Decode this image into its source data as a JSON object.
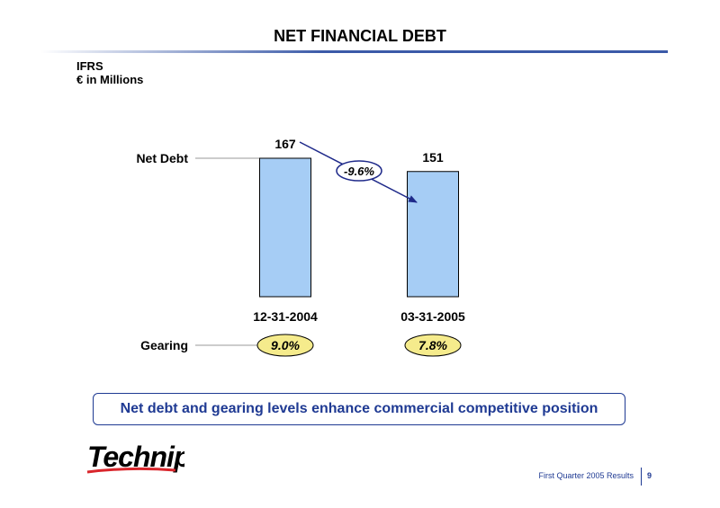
{
  "page": {
    "title": "NET FINANCIAL DEBT",
    "units_line1": "IFRS",
    "units_line2": "€ in Millions",
    "conclusion": "Net debt and gearing levels enhance commercial competitive position",
    "logo_text": "Technip",
    "footer": "First Quarter 2005 Results",
    "page_number": "9"
  },
  "chart_data": {
    "type": "bar",
    "categories": [
      "12-31-2004",
      "03-31-2005"
    ],
    "series": [
      {
        "name": "Net Debt",
        "values": [
          167,
          151
        ]
      }
    ],
    "data_labels": [
      "167",
      "151"
    ],
    "row_labels": {
      "net_debt": "Net Debt",
      "gearing": "Gearing"
    },
    "gearing": {
      "values": [
        "9.0%",
        "7.8%"
      ]
    },
    "change_annotation": "-9.6%",
    "ylim": [
      0,
      170
    ],
    "colors": {
      "bar_fill": "#a6cdf5",
      "bar_stroke": "#000000",
      "arrow": "#1f2a8a",
      "gearing_fill": "#f5eb8c"
    }
  }
}
